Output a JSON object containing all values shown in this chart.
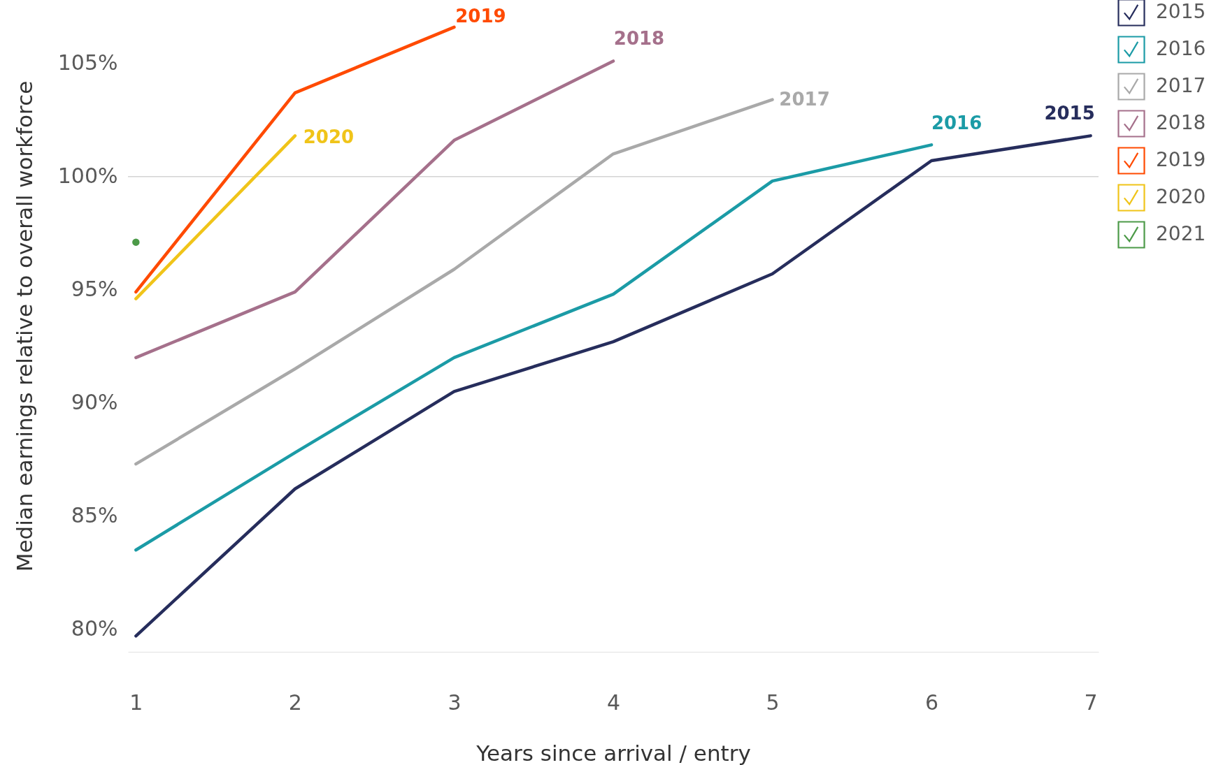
{
  "chart_data": {
    "type": "line",
    "xlabel": "Years since arrival / entry",
    "ylabel": "Median earnings relative to overall workforce",
    "xlim": [
      0.95,
      7.05
    ],
    "xticks": [
      1,
      2,
      3,
      4,
      5,
      6,
      7
    ],
    "ylim": [
      79.0,
      107.8
    ],
    "yticks": [
      {
        "value": 80,
        "label": "80%"
      },
      {
        "value": 85,
        "label": "85%"
      },
      {
        "value": 90,
        "label": "90%"
      },
      {
        "value": 95,
        "label": "95%"
      },
      {
        "value": 100,
        "label": "100%"
      },
      {
        "value": 105,
        "label": "105%"
      }
    ],
    "grid": false,
    "legend": "top right",
    "line_style": "solid",
    "ref_lines": [
      {
        "axis": "y",
        "value": 100,
        "color": "#d4d4d4"
      }
    ],
    "series": [
      {
        "name": "2015",
        "color": "#262d5c",
        "x": [
          1,
          2,
          3,
          4,
          5,
          6,
          7
        ],
        "values": [
          79.7,
          86.2,
          90.5,
          92.7,
          95.7,
          100.7,
          101.8
        ]
      },
      {
        "name": "2016",
        "color": "#1b9ba6",
        "x": [
          1,
          2,
          3,
          4,
          5,
          6
        ],
        "values": [
          83.5,
          87.8,
          92.0,
          94.8,
          99.8,
          101.4
        ]
      },
      {
        "name": "2017",
        "color": "#a9a9a9",
        "x": [
          1,
          2,
          3,
          4,
          5
        ],
        "values": [
          87.3,
          91.5,
          95.9,
          101.0,
          103.4
        ]
      },
      {
        "name": "2018",
        "color": "#a5708b",
        "x": [
          1,
          2,
          3,
          4
        ],
        "values": [
          92.0,
          94.9,
          101.6,
          105.1
        ]
      },
      {
        "name": "2019",
        "color": "#ff4a00",
        "x": [
          1,
          2,
          3
        ],
        "values": [
          94.9,
          103.7,
          106.6
        ]
      },
      {
        "name": "2020",
        "color": "#f0c419",
        "x": [
          1,
          2
        ],
        "values": [
          94.6,
          101.8
        ]
      },
      {
        "name": "2021",
        "type": "scatter",
        "marker": "circle",
        "color": "#4c9a48",
        "x": [
          1
        ],
        "values": [
          97.1
        ]
      }
    ]
  }
}
